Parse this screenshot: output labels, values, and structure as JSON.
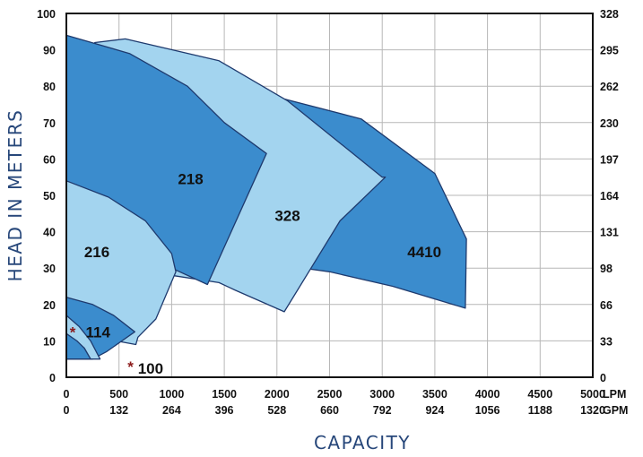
{
  "chart_data": {
    "type": "area",
    "title": "",
    "xlabel": "CAPACITY",
    "ylabel": "HEAD IN METERS",
    "xlim": [
      0,
      5000
    ],
    "ylim": [
      0,
      100
    ],
    "x_ticks": [
      0,
      500,
      1000,
      1500,
      2000,
      2500,
      3000,
      3500,
      4000,
      4500,
      5000
    ],
    "x_tick_labels_lpm": [
      "0",
      "500",
      "1000",
      "1500",
      "2000",
      "2500",
      "3000",
      "3500",
      "4000",
      "4500",
      "5000"
    ],
    "x_tick_labels_gpm": [
      "0",
      "132",
      "264",
      "396",
      "528",
      "660",
      "792",
      "924",
      "1056",
      "1188",
      "1320"
    ],
    "x_unit_primary": "LPM",
    "x_unit_secondary": "GPM",
    "y_ticks": [
      0,
      10,
      20,
      30,
      40,
      50,
      60,
      70,
      80,
      90,
      100
    ],
    "y_tick_labels": [
      "0",
      "10",
      "20",
      "30",
      "40",
      "50",
      "60",
      "70",
      "80",
      "90",
      "100"
    ],
    "y2_tick_labels": [
      "0",
      "33",
      "66",
      "98",
      "131",
      "164",
      "197",
      "230",
      "262",
      "295",
      "328"
    ],
    "grid": true,
    "colors": {
      "dark": "#3b8ccd",
      "light": "#a3d4ef",
      "outline": "#1e3a6e",
      "axis_title": "#27477a",
      "marker": "#8b1a1a"
    },
    "series": [
      {
        "name": "4410",
        "fill": "dark",
        "label_at": [
          3400,
          34.5
        ],
        "points": [
          [
            1000,
            30
          ],
          [
            1750,
            78
          ],
          [
            2000,
            77
          ],
          [
            2800,
            71
          ],
          [
            3500,
            56
          ],
          [
            3800,
            38
          ],
          [
            3790,
            19
          ],
          [
            3100,
            25
          ],
          [
            2500,
            29
          ],
          [
            2000,
            31
          ],
          [
            1700,
            32
          ]
        ]
      },
      {
        "name": "328",
        "fill": "light",
        "label_at": [
          2100,
          44.5
        ],
        "points": [
          [
            1000,
            30
          ],
          [
            1050,
            65
          ],
          [
            270,
            92
          ],
          [
            560,
            93
          ],
          [
            1450,
            87
          ],
          [
            2100,
            76
          ],
          [
            3000,
            55
          ],
          [
            3030,
            55
          ],
          [
            2600,
            43
          ],
          [
            2070,
            18
          ],
          [
            1600,
            24
          ],
          [
            1450,
            26
          ],
          [
            1000,
            28
          ]
        ]
      },
      {
        "name": "218",
        "fill": "dark",
        "label_at": [
          1180,
          54.5
        ],
        "points": [
          [
            0,
            94
          ],
          [
            600,
            89
          ],
          [
            1150,
            80
          ],
          [
            1500,
            70
          ],
          [
            1900,
            61.5
          ],
          [
            1340,
            25.5
          ],
          [
            1000,
            30
          ],
          [
            0,
            54
          ]
        ]
      },
      {
        "name": "216",
        "fill": "light",
        "label_at": [
          290,
          34.5
        ],
        "points": [
          [
            0,
            54
          ],
          [
            400,
            49.5
          ],
          [
            750,
            43
          ],
          [
            1000,
            34
          ],
          [
            1040,
            29
          ],
          [
            850,
            16
          ],
          [
            680,
            11
          ],
          [
            660,
            9
          ],
          [
            470,
            10
          ],
          [
            380,
            13
          ],
          [
            0,
            16
          ]
        ]
      },
      {
        "name": "114",
        "fill": "dark",
        "label_at": [
          300,
          12.5
        ],
        "points": [
          [
            0,
            22
          ],
          [
            250,
            20
          ],
          [
            450,
            17
          ],
          [
            650,
            12.5
          ],
          [
            380,
            7
          ],
          [
            250,
            5
          ],
          [
            0,
            5
          ]
        ]
      },
      {
        "name": "100",
        "fill": "light",
        "label_at": [
          800,
          2.5
        ],
        "points": [
          [
            0,
            17
          ],
          [
            120,
            14
          ],
          [
            230,
            10
          ],
          [
            320,
            5
          ],
          [
            230,
            5
          ],
          [
            170,
            8
          ],
          [
            0,
            12
          ]
        ]
      },
      {
        "name": "100-inner",
        "fill": "dark",
        "label_at": null,
        "points": [
          [
            0,
            12
          ],
          [
            100,
            10
          ],
          [
            170,
            8
          ],
          [
            230,
            5
          ],
          [
            0,
            5
          ]
        ]
      }
    ],
    "annotations": [
      {
        "text": "*",
        "at": [
          60,
          12.5
        ],
        "style": "marker"
      },
      {
        "text": "*",
        "at": [
          610,
          3
        ],
        "style": "marker"
      }
    ]
  }
}
